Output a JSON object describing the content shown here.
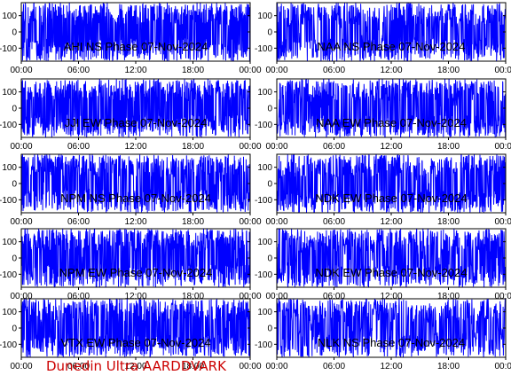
{
  "footer": {
    "text": "Dunedin Ultra AARDDVARK",
    "color": "#cc0000"
  },
  "colors": {
    "trace": "#0000ff",
    "axis": "#000000",
    "background": "#ffffff",
    "label": "#000000"
  },
  "chart_data": [
    {
      "type": "line",
      "title": "AHI NS Phase 07-Nov-2024",
      "ylim": [
        -180,
        180
      ],
      "yticks": [
        100,
        0,
        -100
      ],
      "xticks": [
        "00:00",
        "06:00",
        "12:00",
        "18:00",
        "00:00"
      ],
      "density": 1.0
    },
    {
      "type": "line",
      "title": "NAA NS Phase 07-Nov-2024",
      "ylim": [
        -180,
        180
      ],
      "yticks": [
        100,
        0,
        -100
      ],
      "xticks": [
        "00:00",
        "06:00",
        "12:00",
        "18:00",
        "00:00"
      ],
      "density": 0.75
    },
    {
      "type": "line",
      "title": "JJI EW Phase 07-Nov-2024",
      "ylim": [
        -180,
        180
      ],
      "yticks": [
        100,
        0,
        -100
      ],
      "xticks": [
        "00:00",
        "06:00",
        "12:00",
        "18:00",
        "00:00"
      ],
      "density": 1.0
    },
    {
      "type": "line",
      "title": "NAA EW Phase 07-Nov-2024",
      "ylim": [
        -180,
        180
      ],
      "yticks": [
        100,
        0,
        -100
      ],
      "xticks": [
        "00:00",
        "06:00",
        "12:00",
        "18:00",
        "00:00"
      ],
      "density": 0.85
    },
    {
      "type": "line",
      "title": "NPM NS Phase 07-Nov-2024",
      "ylim": [
        -180,
        180
      ],
      "yticks": [
        100,
        0,
        -100
      ],
      "xticks": [
        "00:00",
        "06:00",
        "12:00",
        "18:00",
        "00:00"
      ],
      "density": 0.85
    },
    {
      "type": "line",
      "title": "NDK EW Phase 07-Nov-2024",
      "ylim": [
        -180,
        180
      ],
      "yticks": [
        100,
        0,
        -100
      ],
      "xticks": [
        "00:00",
        "06:00",
        "12:00",
        "18:00",
        "00:00"
      ],
      "density": 0.8
    },
    {
      "type": "line",
      "title": "NPM EW Phase 07-Nov-2024",
      "ylim": [
        -180,
        180
      ],
      "yticks": [
        100,
        0,
        -100
      ],
      "xticks": [
        "00:00",
        "06:00",
        "12:00",
        "18:00",
        "00:00"
      ],
      "density": 0.95
    },
    {
      "type": "line",
      "title": "NDK EW Phase 07-Nov-2024",
      "ylim": [
        -180,
        180
      ],
      "yticks": [
        100,
        0,
        -100
      ],
      "xticks": [
        "00:00",
        "06:00",
        "12:00",
        "18:00",
        "00:00"
      ],
      "density": 0.8
    },
    {
      "type": "line",
      "title": "VTX EW Phase 07-Nov-2024",
      "ylim": [
        -180,
        180
      ],
      "yticks": [
        100,
        0,
        -100
      ],
      "xticks": [
        "00:00",
        "06:00",
        "12:00",
        "18:00",
        "00:00"
      ],
      "density": 0.95
    },
    {
      "type": "line",
      "title": "NLK NS Phase 07-Nov-2024",
      "ylim": [
        -180,
        180
      ],
      "yticks": [
        100,
        0,
        -100
      ],
      "xticks": [
        "00:00",
        "06:00",
        "12:00",
        "18:00",
        "00:00"
      ],
      "density": 0.6
    }
  ]
}
